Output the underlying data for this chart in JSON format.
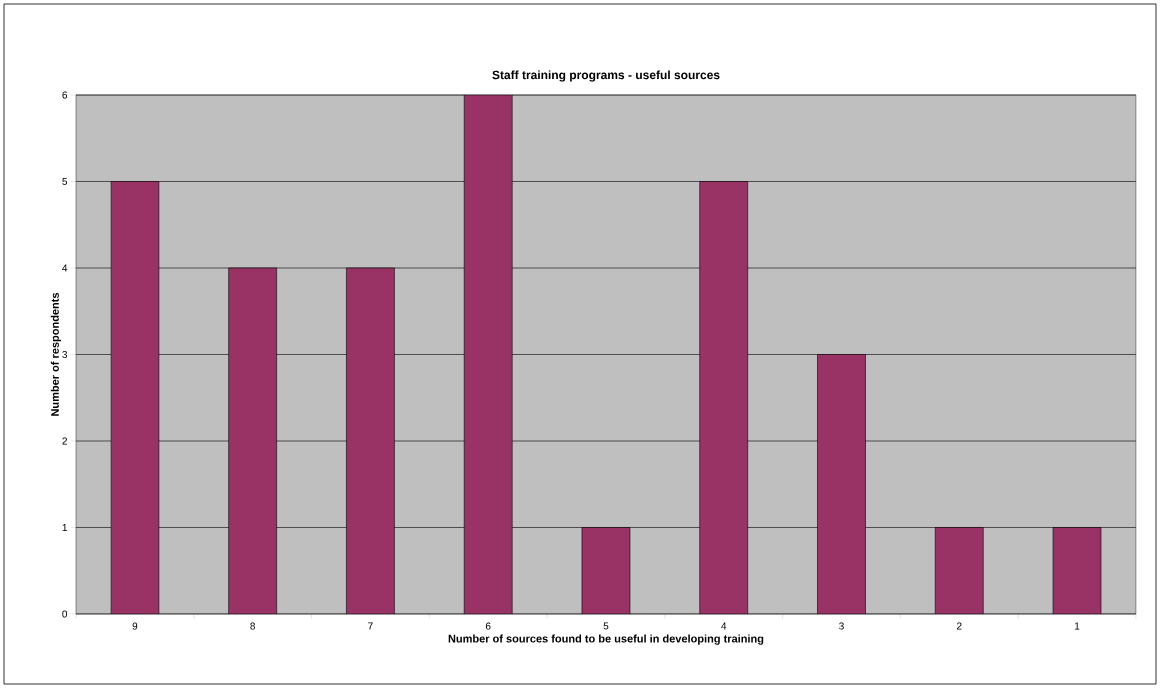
{
  "chart_data": {
    "type": "bar",
    "title": "Staff training programs - useful sources",
    "xlabel": "Number of sources found to be useful in developing training",
    "ylabel": "Number of respondents",
    "categories": [
      "9",
      "8",
      "7",
      "6",
      "5",
      "4",
      "3",
      "2",
      "1"
    ],
    "values": [
      5,
      4,
      4,
      6,
      1,
      5,
      3,
      1,
      1
    ],
    "color": "#993366",
    "ylim": [
      0,
      6
    ],
    "yticks": [
      0,
      1,
      2,
      3,
      4,
      5,
      6
    ],
    "grid": "y"
  }
}
